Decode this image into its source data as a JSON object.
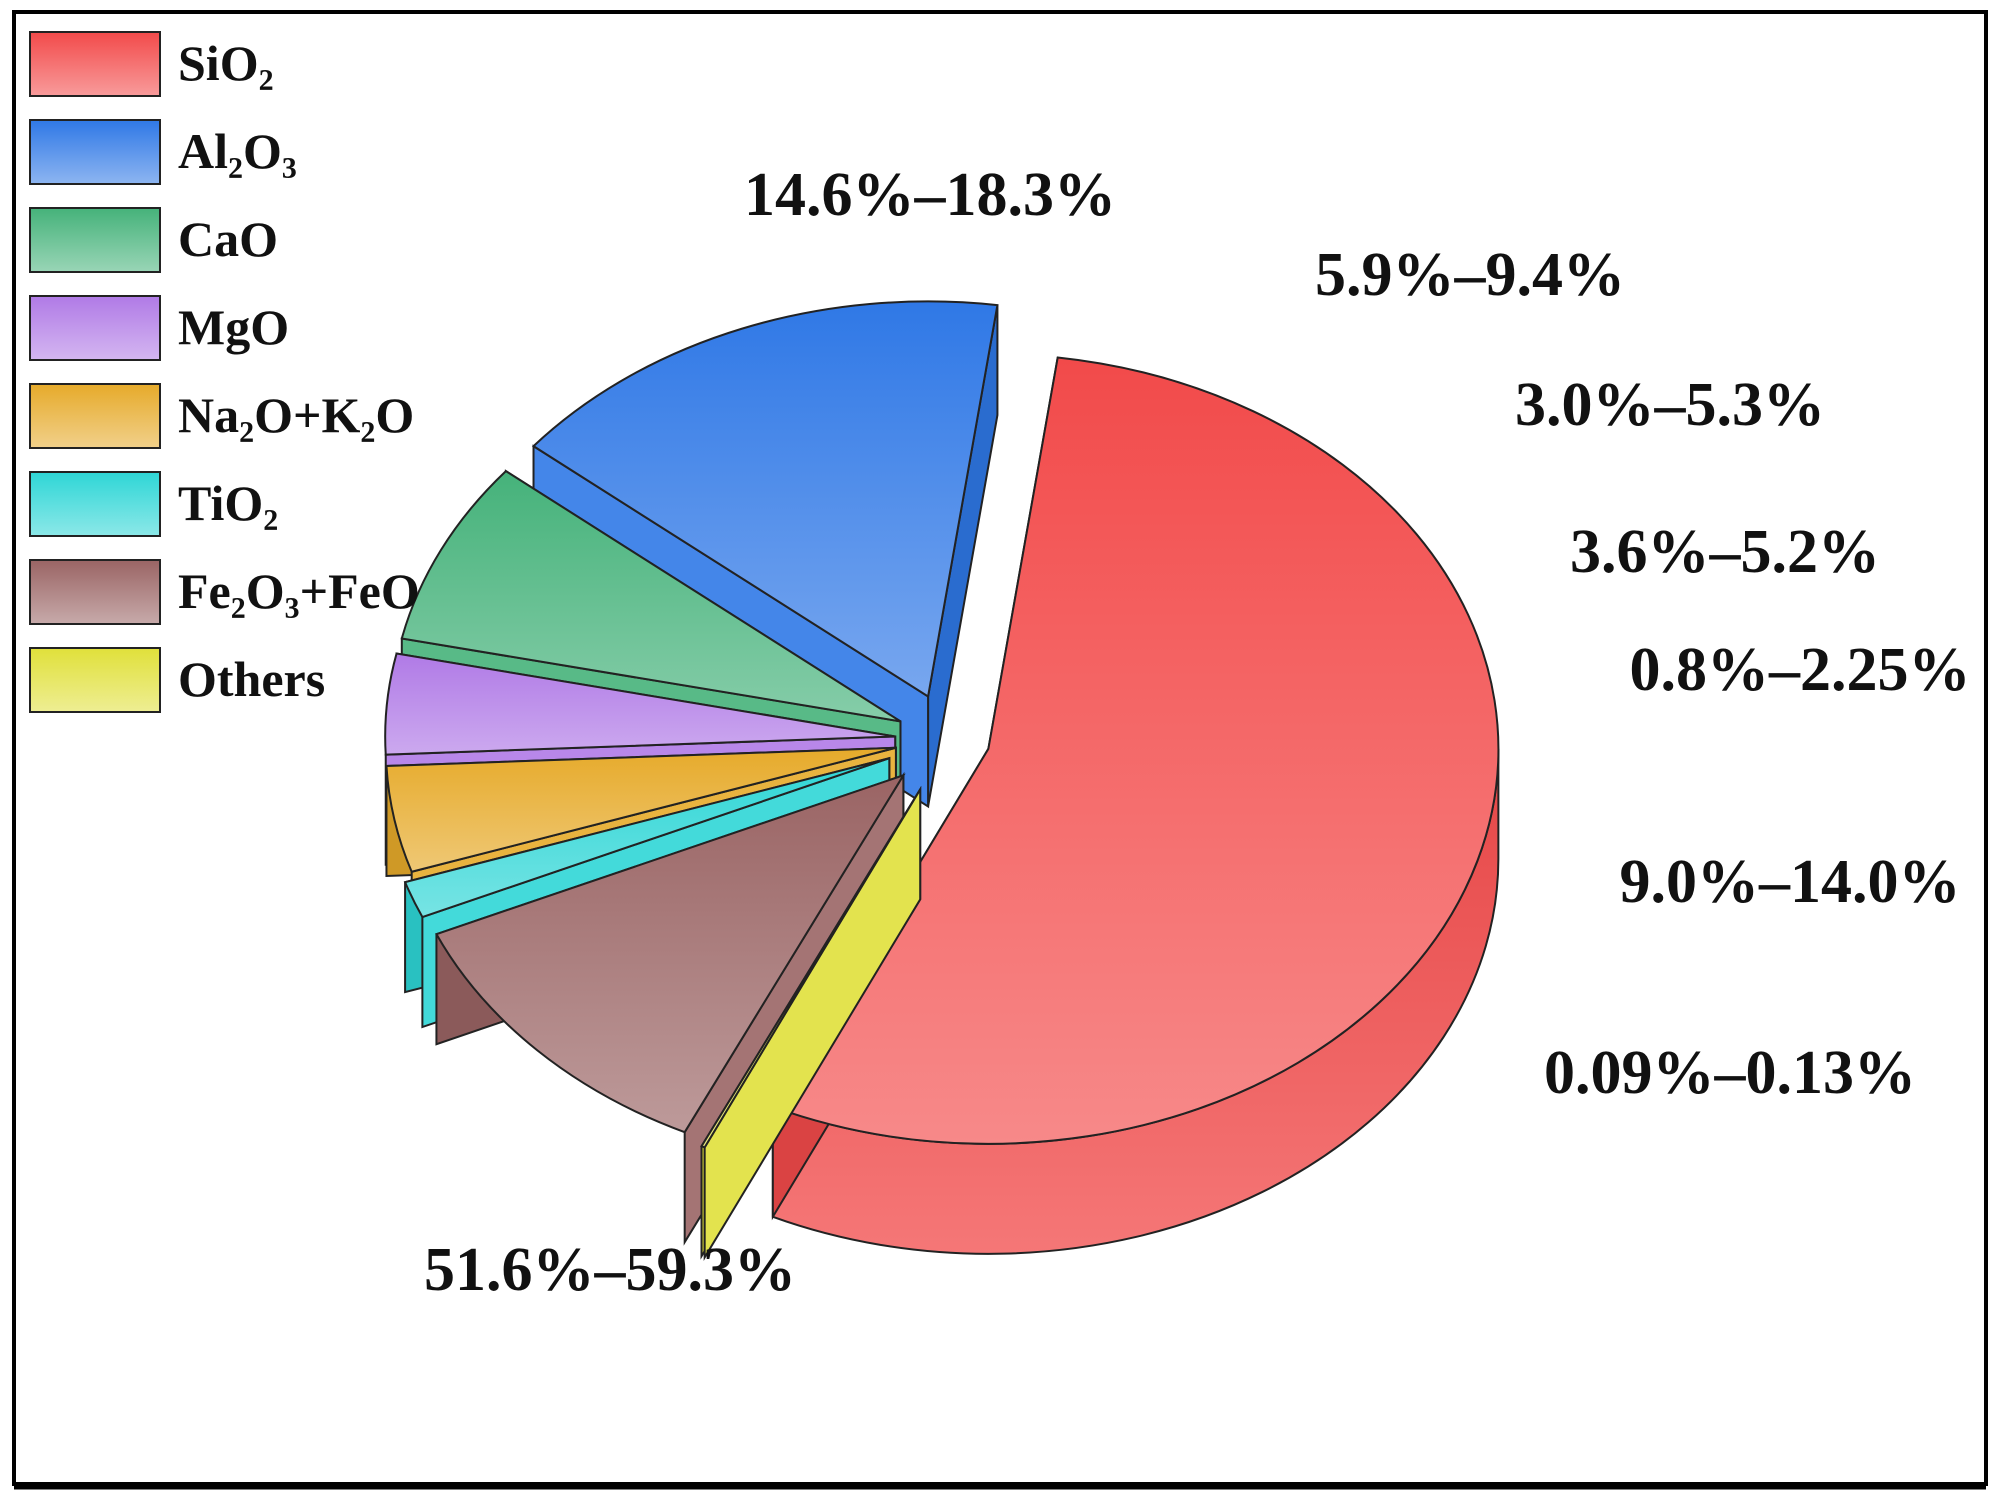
{
  "chart_data": {
    "type": "pie",
    "style": "3d-exploded",
    "title": "",
    "legend_placement": "top-left",
    "slices": [
      {
        "key": "sio2",
        "label": "SiO₂",
        "range_label": "51.6%–59.3%",
        "value": 55.45,
        "color": "#f24a4a"
      },
      {
        "key": "al2o3",
        "label": "Al₂O₃",
        "range_label": "14.6%–18.3%",
        "value": 16.45,
        "color": "#2f78e6"
      },
      {
        "key": "cao",
        "label": "CaO",
        "range_label": "5.9%–9.4%",
        "value": 7.65,
        "color": "#45b27a"
      },
      {
        "key": "mgo",
        "label": "MgO",
        "range_label": "3.0%–5.3%",
        "value": 4.15,
        "color": "#b07ae6"
      },
      {
        "key": "na2o_k2o",
        "label": "Na₂O+K₂O",
        "range_label": "3.6%–5.2%",
        "value": 4.4,
        "color": "#e6aa2a"
      },
      {
        "key": "tio2",
        "label": "TiO₂",
        "range_label": "0.8%–2.25%",
        "value": 1.525,
        "color": "#2ed6d6"
      },
      {
        "key": "fe2o3_feo",
        "label": "Fe₂O₃+FeO",
        "range_label": "9.0%–14.0%",
        "value": 11.5,
        "color": "#9a6464"
      },
      {
        "key": "others",
        "label": "Others",
        "range_label": "0.09%–0.13%",
        "value": 0.11,
        "color": "#e0e03a"
      }
    ]
  }
}
